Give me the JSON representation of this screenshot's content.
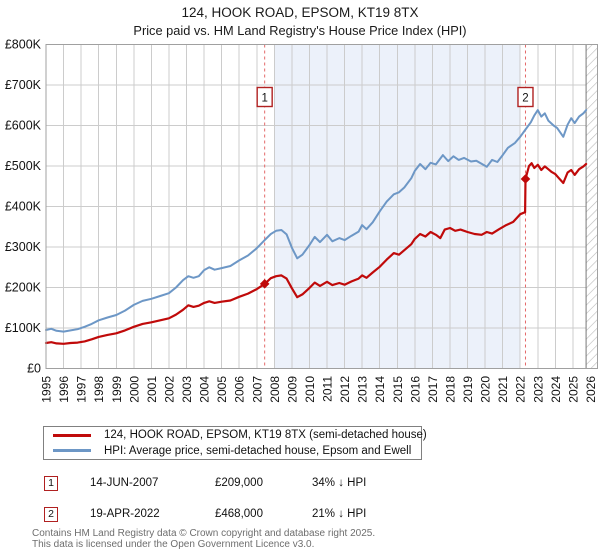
{
  "title": "124, HOOK ROAD, EPSOM, KT19 8TX",
  "subtitle": "Price paid vs. HM Land Registry's House Price Index (HPI)",
  "legend": {
    "items": [
      {
        "label": "124, HOOK ROAD, EPSOM, KT19 8TX (semi-detached house)",
        "color": "#c00a0a"
      },
      {
        "label": "HPI: Average price, semi-detached house, Epsom and Ewell",
        "color": "#6d97c6"
      }
    ]
  },
  "annotations": [
    {
      "num": "1",
      "date": "14-JUN-2007",
      "price": "£209,000",
      "delta": "34% ↓ HPI"
    },
    {
      "num": "2",
      "date": "19-APR-2022",
      "price": "£468,000",
      "delta": "21% ↓ HPI"
    }
  ],
  "footer": {
    "line1": "Contains HM Land Registry data © Crown copyright and database right 2025.",
    "line2": "This data is licensed under the Open Government Licence v3.0."
  },
  "chart_data": {
    "type": "line",
    "title": "124, HOOK ROAD, EPSOM, KT19 8TX — Price paid vs. HPI",
    "grid": true,
    "x_axis": {
      "lim": [
        1995,
        2026.4
      ],
      "ticks": [
        1995,
        1996,
        1997,
        1998,
        1999,
        2000,
        2001,
        2002,
        2003,
        2004,
        2005,
        2006,
        2007,
        2008,
        2009,
        2010,
        2011,
        2012,
        2013,
        2014,
        2015,
        2016,
        2017,
        2018,
        2019,
        2020,
        2021,
        2022,
        2023,
        2024,
        2025,
        2026
      ]
    },
    "y_axis": {
      "lim": [
        0,
        800000
      ],
      "ticks": [
        {
          "v": 0,
          "label": "£0"
        },
        {
          "v": 100000,
          "label": "£100K"
        },
        {
          "v": 200000,
          "label": "£200K"
        },
        {
          "v": 300000,
          "label": "£300K"
        },
        {
          "v": 400000,
          "label": "£400K"
        },
        {
          "v": 500000,
          "label": "£500K"
        },
        {
          "v": 600000,
          "label": "£600K"
        },
        {
          "v": 700000,
          "label": "£700K"
        },
        {
          "v": 800000,
          "label": "£800K"
        }
      ]
    },
    "shaded_span": {
      "from": 2008,
      "to": 2022,
      "color": "#ecf1fa"
    },
    "future_hatch_span": {
      "from": 2025.75,
      "to": 2026.4
    },
    "sale_markers": [
      {
        "num": "1",
        "date": "14-JUN-2007",
        "x": 2007.45,
        "price": 209000
      },
      {
        "num": "2",
        "date": "19-APR-2022",
        "x": 2022.3,
        "price": 468000
      }
    ],
    "marker_line_color": "#e46a6a",
    "series": [
      {
        "name": "124, HOOK ROAD, EPSOM, KT19 8TX (semi-detached house)",
        "color": "#c00a0a",
        "width": 2.2,
        "points": [
          [
            1995.0,
            63000
          ],
          [
            1995.3,
            65000
          ],
          [
            1995.6,
            62000
          ],
          [
            1996.0,
            61000
          ],
          [
            1996.4,
            63000
          ],
          [
            1996.8,
            64000
          ],
          [
            1997.2,
            67000
          ],
          [
            1997.6,
            72000
          ],
          [
            1998.0,
            78000
          ],
          [
            1998.5,
            83000
          ],
          [
            1999.0,
            87000
          ],
          [
            1999.5,
            94000
          ],
          [
            2000.0,
            103000
          ],
          [
            2000.5,
            110000
          ],
          [
            2001.0,
            114000
          ],
          [
            2001.5,
            119000
          ],
          [
            2002.0,
            124000
          ],
          [
            2002.4,
            133000
          ],
          [
            2002.8,
            145000
          ],
          [
            2003.1,
            156000
          ],
          [
            2003.4,
            152000
          ],
          [
            2003.7,
            155000
          ],
          [
            2004.0,
            162000
          ],
          [
            2004.3,
            166000
          ],
          [
            2004.6,
            162000
          ],
          [
            2005.0,
            165000
          ],
          [
            2005.5,
            168000
          ],
          [
            2006.0,
            177000
          ],
          [
            2006.5,
            185000
          ],
          [
            2007.0,
            196000
          ],
          [
            2007.45,
            209000
          ],
          [
            2007.8,
            223000
          ],
          [
            2008.1,
            228000
          ],
          [
            2008.4,
            230000
          ],
          [
            2008.7,
            222000
          ],
          [
            2009.0,
            198000
          ],
          [
            2009.3,
            176000
          ],
          [
            2009.6,
            183000
          ],
          [
            2010.0,
            199000
          ],
          [
            2010.3,
            212000
          ],
          [
            2010.6,
            204000
          ],
          [
            2011.0,
            214000
          ],
          [
            2011.3,
            206000
          ],
          [
            2011.7,
            211000
          ],
          [
            2012.0,
            207000
          ],
          [
            2012.4,
            215000
          ],
          [
            2012.8,
            222000
          ],
          [
            2013.0,
            230000
          ],
          [
            2013.25,
            224000
          ],
          [
            2013.6,
            237000
          ],
          [
            2014.0,
            251000
          ],
          [
            2014.4,
            269000
          ],
          [
            2014.8,
            285000
          ],
          [
            2015.1,
            281000
          ],
          [
            2015.4,
            292000
          ],
          [
            2015.8,
            307000
          ],
          [
            2016.0,
            320000
          ],
          [
            2016.3,
            332000
          ],
          [
            2016.6,
            326000
          ],
          [
            2016.9,
            337000
          ],
          [
            2017.2,
            330000
          ],
          [
            2017.45,
            322000
          ],
          [
            2017.7,
            343000
          ],
          [
            2018.0,
            347000
          ],
          [
            2018.3,
            340000
          ],
          [
            2018.6,
            343000
          ],
          [
            2019.0,
            337000
          ],
          [
            2019.4,
            332000
          ],
          [
            2019.8,
            330000
          ],
          [
            2020.1,
            337000
          ],
          [
            2020.4,
            333000
          ],
          [
            2020.8,
            344000
          ],
          [
            2021.2,
            354000
          ],
          [
            2021.6,
            362000
          ],
          [
            2022.0,
            381000
          ],
          [
            2022.28,
            386000
          ],
          [
            2022.3,
            468000
          ],
          [
            2022.5,
            500000
          ],
          [
            2022.65,
            507000
          ],
          [
            2022.8,
            495000
          ],
          [
            2023.0,
            503000
          ],
          [
            2023.2,
            490000
          ],
          [
            2023.4,
            499000
          ],
          [
            2023.6,
            492000
          ],
          [
            2023.8,
            485000
          ],
          [
            2024.0,
            480000
          ],
          [
            2024.2,
            470000
          ],
          [
            2024.45,
            458000
          ],
          [
            2024.7,
            484000
          ],
          [
            2024.9,
            490000
          ],
          [
            2025.1,
            478000
          ],
          [
            2025.35,
            492000
          ],
          [
            2025.6,
            499000
          ],
          [
            2025.75,
            505000
          ]
        ]
      },
      {
        "name": "HPI: Average price, semi-detached house, Epsom and Ewell",
        "color": "#6d97c6",
        "width": 2.0,
        "points": [
          [
            1995.0,
            95000
          ],
          [
            1995.3,
            98000
          ],
          [
            1995.6,
            93000
          ],
          [
            1996.0,
            91000
          ],
          [
            1996.4,
            94000
          ],
          [
            1996.8,
            97000
          ],
          [
            1997.2,
            103000
          ],
          [
            1997.6,
            110000
          ],
          [
            1998.0,
            119000
          ],
          [
            1998.5,
            126000
          ],
          [
            1999.0,
            132000
          ],
          [
            1999.5,
            143000
          ],
          [
            2000.0,
            157000
          ],
          [
            2000.5,
            167000
          ],
          [
            2001.0,
            172000
          ],
          [
            2001.5,
            179000
          ],
          [
            2002.0,
            186000
          ],
          [
            2002.4,
            200000
          ],
          [
            2002.8,
            218000
          ],
          [
            2003.1,
            228000
          ],
          [
            2003.4,
            224000
          ],
          [
            2003.7,
            228000
          ],
          [
            2004.0,
            243000
          ],
          [
            2004.3,
            250000
          ],
          [
            2004.6,
            244000
          ],
          [
            2005.0,
            248000
          ],
          [
            2005.5,
            253000
          ],
          [
            2006.0,
            267000
          ],
          [
            2006.5,
            279000
          ],
          [
            2007.0,
            297000
          ],
          [
            2007.45,
            317000
          ],
          [
            2007.8,
            332000
          ],
          [
            2008.1,
            340000
          ],
          [
            2008.4,
            342000
          ],
          [
            2008.7,
            331000
          ],
          [
            2009.0,
            298000
          ],
          [
            2009.3,
            272000
          ],
          [
            2009.6,
            281000
          ],
          [
            2010.0,
            305000
          ],
          [
            2010.3,
            325000
          ],
          [
            2010.6,
            312000
          ],
          [
            2011.0,
            330000
          ],
          [
            2011.3,
            314000
          ],
          [
            2011.7,
            322000
          ],
          [
            2012.0,
            317000
          ],
          [
            2012.4,
            328000
          ],
          [
            2012.8,
            338000
          ],
          [
            2013.0,
            354000
          ],
          [
            2013.25,
            344000
          ],
          [
            2013.6,
            361000
          ],
          [
            2014.0,
            388000
          ],
          [
            2014.4,
            412000
          ],
          [
            2014.8,
            430000
          ],
          [
            2015.1,
            435000
          ],
          [
            2015.4,
            447000
          ],
          [
            2015.8,
            470000
          ],
          [
            2016.0,
            488000
          ],
          [
            2016.3,
            505000
          ],
          [
            2016.6,
            492000
          ],
          [
            2016.9,
            508000
          ],
          [
            2017.2,
            504000
          ],
          [
            2017.6,
            527000
          ],
          [
            2017.9,
            512000
          ],
          [
            2018.2,
            524000
          ],
          [
            2018.5,
            515000
          ],
          [
            2018.8,
            520000
          ],
          [
            2019.2,
            511000
          ],
          [
            2019.5,
            513000
          ],
          [
            2019.9,
            503000
          ],
          [
            2020.1,
            498000
          ],
          [
            2020.4,
            515000
          ],
          [
            2020.7,
            510000
          ],
          [
            2021.0,
            527000
          ],
          [
            2021.3,
            545000
          ],
          [
            2021.7,
            557000
          ],
          [
            2022.0,
            572000
          ],
          [
            2022.3,
            590000
          ],
          [
            2022.6,
            608000
          ],
          [
            2022.8,
            625000
          ],
          [
            2023.0,
            638000
          ],
          [
            2023.2,
            622000
          ],
          [
            2023.4,
            630000
          ],
          [
            2023.6,
            612000
          ],
          [
            2023.9,
            600000
          ],
          [
            2024.1,
            594000
          ],
          [
            2024.45,
            572000
          ],
          [
            2024.7,
            602000
          ],
          [
            2024.9,
            618000
          ],
          [
            2025.1,
            606000
          ],
          [
            2025.35,
            622000
          ],
          [
            2025.6,
            630000
          ],
          [
            2025.75,
            638000
          ]
        ]
      }
    ]
  }
}
